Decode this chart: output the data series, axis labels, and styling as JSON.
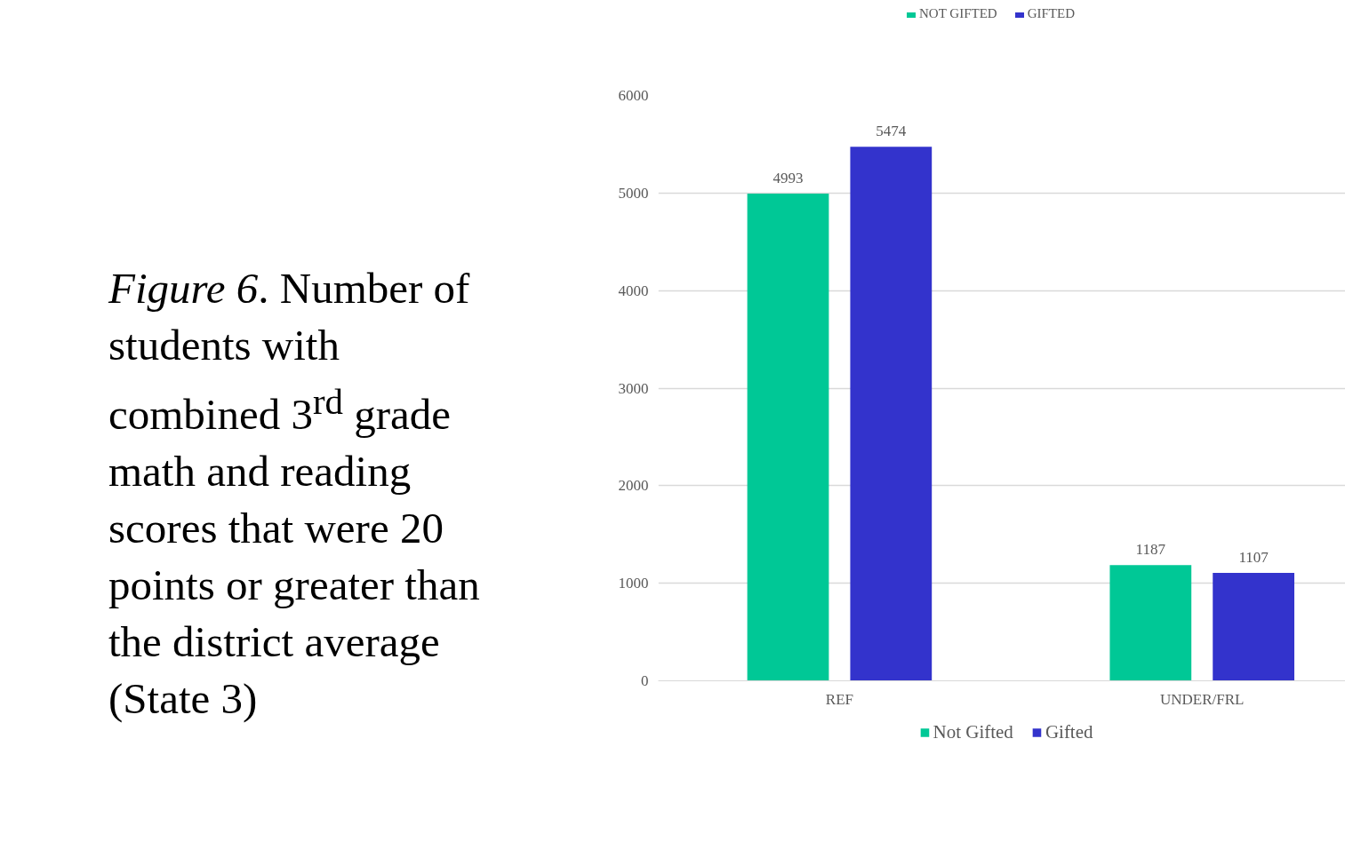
{
  "chart_data": {
    "type": "bar",
    "title": "Figure 6. Number of students with combined 3$^{rd}$ grade math and reading scores that were 20 points or greater than the district average (State 3)",
    "categories": [
      "REF",
      "UNDER/FRL"
    ],
    "series": [
      {
        "name": "Not Gifted",
        "color": "#00c896",
        "values": [
          4993,
          1187
        ]
      },
      {
        "name": "Gifted",
        "color": "#3333cc",
        "values": [
          5474,
          1107
        ]
      }
    ],
    "ylim": [
      0,
      6000
    ],
    "yticks": [
      0,
      1000,
      2000,
      3000,
      4000,
      5000,
      6000
    ],
    "grid": "y",
    "legend": "bottom",
    "data_labels": true,
    "annotations": [
      "NOT GIFTED",
      "GIFTED"
    ]
  }
}
